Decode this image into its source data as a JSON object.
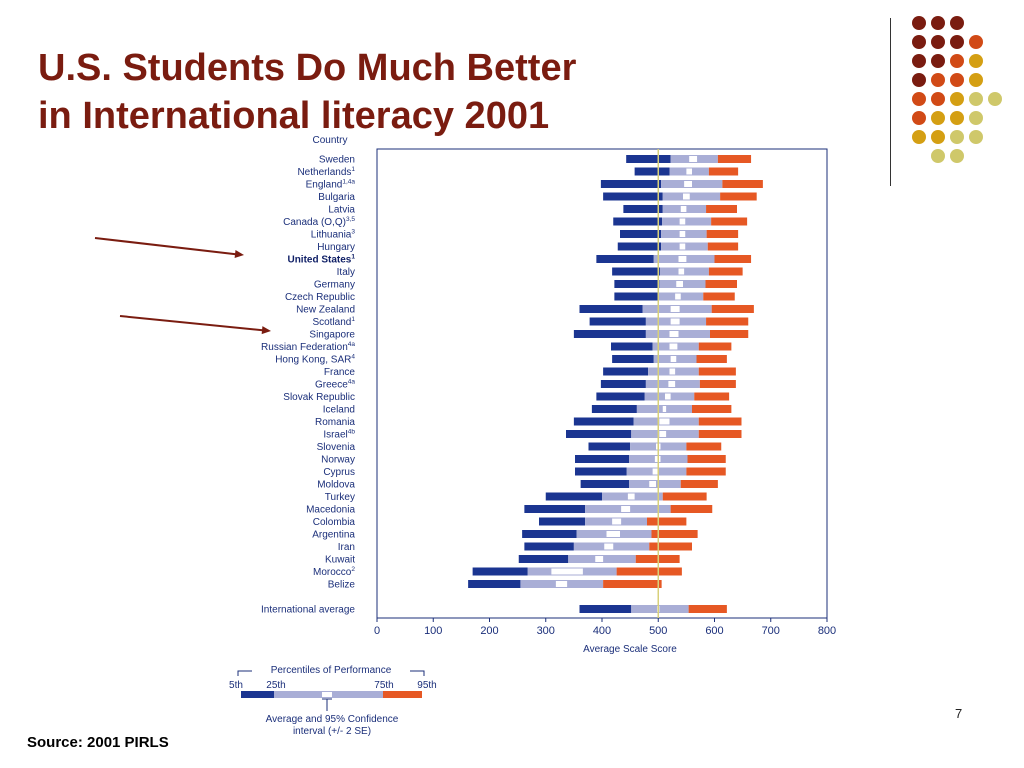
{
  "slide": {
    "title_line1": "U.S. Students Do Much Better",
    "title_line2": "in International literacy 2001",
    "source": "Source: 2001 PIRLS",
    "page_number": "7"
  },
  "colors": {
    "title": "#7a1c10",
    "p5_25": "#1b3591",
    "p25_75": "#a9aed6",
    "ci": "#ffffff",
    "p75_95": "#e65824",
    "average_line": "#d8d07a",
    "arrow": "#7a1c10",
    "dot_palette": [
      "#7a1c10",
      "#d14a16",
      "#d49f13",
      "#cfc86a"
    ]
  },
  "chart_data": {
    "type": "bar",
    "subtype": "percentile-range",
    "ylabel": "Country",
    "xlabel": "Average Scale Score",
    "xlim": [
      0,
      800
    ],
    "xticks": [
      0,
      100,
      200,
      300,
      400,
      500,
      600,
      700,
      800
    ],
    "reference_line": 500,
    "highlighted": [
      "United States",
      "Singapore"
    ],
    "rows": [
      {
        "label": "Sweden",
        "sup": "",
        "p5": 443,
        "p25": 522,
        "ci": [
          555,
          569
        ],
        "p75": 606,
        "p95": 665
      },
      {
        "label": "Netherlands",
        "sup": "1",
        "p5": 458,
        "p25": 520,
        "ci": [
          550,
          560
        ],
        "p75": 590,
        "p95": 642
      },
      {
        "label": "England",
        "sup": "1,4a",
        "p5": 398,
        "p25": 505,
        "ci": [
          546,
          560
        ],
        "p75": 614,
        "p95": 686
      },
      {
        "label": "Bulgaria",
        "sup": "",
        "p5": 402,
        "p25": 508,
        "ci": [
          544,
          556
        ],
        "p75": 610,
        "p95": 675
      },
      {
        "label": "Latvia",
        "sup": "",
        "p5": 438,
        "p25": 508,
        "ci": [
          540,
          550
        ],
        "p75": 585,
        "p95": 640
      },
      {
        "label": "Canada (O,Q)",
        "sup": "3,5",
        "p5": 420,
        "p25": 507,
        "ci": [
          538,
          548
        ],
        "p75": 594,
        "p95": 658
      },
      {
        "label": "Lithuania",
        "sup": "3",
        "p5": 432,
        "p25": 505,
        "ci": [
          538,
          548
        ],
        "p75": 586,
        "p95": 642
      },
      {
        "label": "Hungary",
        "sup": "",
        "p5": 428,
        "p25": 505,
        "ci": [
          538,
          548
        ],
        "p75": 588,
        "p95": 642
      },
      {
        "label": "United States",
        "sup": "1",
        "p5": 390,
        "p25": 492,
        "ci": [
          536,
          550
        ],
        "p75": 600,
        "p95": 665
      },
      {
        "label": "Italy",
        "sup": "",
        "p5": 418,
        "p25": 503,
        "ci": [
          536,
          546
        ],
        "p75": 590,
        "p95": 650
      },
      {
        "label": "Germany",
        "sup": "",
        "p5": 422,
        "p25": 502,
        "ci": [
          532,
          544
        ],
        "p75": 584,
        "p95": 640
      },
      {
        "label": "Czech Republic",
        "sup": "",
        "p5": 422,
        "p25": 500,
        "ci": [
          530,
          540
        ],
        "p75": 580,
        "p95": 636
      },
      {
        "label": "New Zealand",
        "sup": "",
        "p5": 360,
        "p25": 472,
        "ci": [
          522,
          538
        ],
        "p75": 595,
        "p95": 670
      },
      {
        "label": "Scotland",
        "sup": "1",
        "p5": 378,
        "p25": 478,
        "ci": [
          522,
          538
        ],
        "p75": 585,
        "p95": 660
      },
      {
        "label": "Singapore",
        "sup": "",
        "p5": 350,
        "p25": 478,
        "ci": [
          520,
          536
        ],
        "p75": 592,
        "p95": 660
      },
      {
        "label": "Russian Federation",
        "sup": "4a",
        "p5": 416,
        "p25": 490,
        "ci": [
          520,
          534
        ],
        "p75": 572,
        "p95": 630
      },
      {
        "label": "Hong Kong, SAR",
        "sup": "4",
        "p5": 418,
        "p25": 492,
        "ci": [
          522,
          532
        ],
        "p75": 568,
        "p95": 622
      },
      {
        "label": "France",
        "sup": "",
        "p5": 402,
        "p25": 482,
        "ci": [
          520,
          530
        ],
        "p75": 572,
        "p95": 638
      },
      {
        "label": "Greece",
        "sup": "4a",
        "p5": 398,
        "p25": 478,
        "ci": [
          518,
          530
        ],
        "p75": 574,
        "p95": 638
      },
      {
        "label": "Slovak Republic",
        "sup": "",
        "p5": 390,
        "p25": 476,
        "ci": [
          512,
          522
        ],
        "p75": 564,
        "p95": 626
      },
      {
        "label": "Iceland",
        "sup": "",
        "p5": 382,
        "p25": 462,
        "ci": [
          508,
          514
        ],
        "p75": 560,
        "p95": 630
      },
      {
        "label": "Romania",
        "sup": "",
        "p5": 350,
        "p25": 456,
        "ci": [
          502,
          520
        ],
        "p75": 572,
        "p95": 648
      },
      {
        "label": "Israel",
        "sup": "4b",
        "p5": 336,
        "p25": 452,
        "ci": [
          502,
          514
        ],
        "p75": 572,
        "p95": 648
      },
      {
        "label": "Slovenia",
        "sup": "",
        "p5": 376,
        "p25": 450,
        "ci": [
          496,
          504
        ],
        "p75": 550,
        "p95": 612
      },
      {
        "label": "Norway",
        "sup": "",
        "p5": 352,
        "p25": 448,
        "ci": [
          494,
          504
        ],
        "p75": 552,
        "p95": 620
      },
      {
        "label": "Cyprus",
        "sup": "",
        "p5": 352,
        "p25": 444,
        "ci": [
          490,
          500
        ],
        "p75": 550,
        "p95": 620
      },
      {
        "label": "Moldova",
        "sup": "",
        "p5": 362,
        "p25": 448,
        "ci": [
          484,
          496
        ],
        "p75": 540,
        "p95": 606
      },
      {
        "label": "Turkey",
        "sup": "",
        "p5": 300,
        "p25": 400,
        "ci": [
          446,
          458
        ],
        "p75": 508,
        "p95": 586
      },
      {
        "label": "Macedonia",
        "sup": "",
        "p5": 262,
        "p25": 370,
        "ci": [
          434,
          450
        ],
        "p75": 522,
        "p95": 596
      },
      {
        "label": "Colombia",
        "sup": "",
        "p5": 288,
        "p25": 370,
        "ci": [
          418,
          434
        ],
        "p75": 480,
        "p95": 550
      },
      {
        "label": "Argentina",
        "sup": "",
        "p5": 258,
        "p25": 355,
        "ci": [
          408,
          432
        ],
        "p75": 488,
        "p95": 570
      },
      {
        "label": "Iran",
        "sup": "",
        "p5": 262,
        "p25": 350,
        "ci": [
          404,
          420
        ],
        "p75": 484,
        "p95": 560
      },
      {
        "label": "Kuwait",
        "sup": "",
        "p5": 252,
        "p25": 340,
        "ci": [
          388,
          402
        ],
        "p75": 460,
        "p95": 538
      },
      {
        "label": "Morocco",
        "sup": "2",
        "p5": 170,
        "p25": 268,
        "ci": [
          310,
          366
        ],
        "p75": 426,
        "p95": 542
      },
      {
        "label": "Belize",
        "sup": "",
        "p5": 162,
        "p25": 255,
        "ci": [
          318,
          338
        ],
        "p75": 402,
        "p95": 506
      },
      {
        "label": "International average",
        "sup": "",
        "p5": 360,
        "p25": 452,
        "ci": [
          498,
          502
        ],
        "p75": 554,
        "p95": 622
      }
    ],
    "legend": {
      "title": "Percentiles of Performance",
      "labels": [
        "5th",
        "25th",
        "75th",
        "95th"
      ],
      "ci_caption_line1": "Average and 95% Confidence",
      "ci_caption_line2": "interval (+/- 2 SE)"
    }
  }
}
